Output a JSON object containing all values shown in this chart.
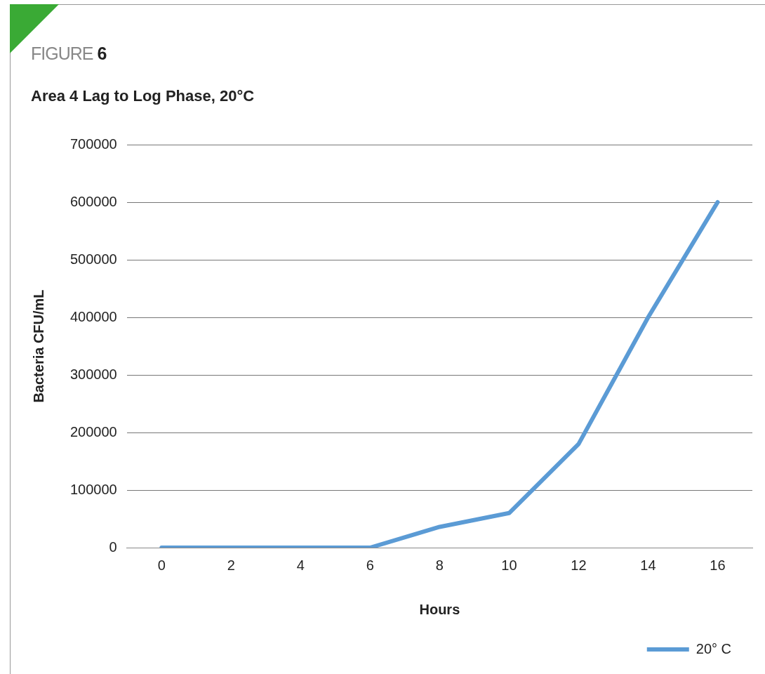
{
  "chart_data": {
    "type": "line",
    "title": "Area 4 Lag to Log Phase, 20°C",
    "xlabel": "Hours",
    "ylabel": "Bacteria CFU/mL",
    "annotations": [
      "FIGURE 6"
    ],
    "categories": [
      "0",
      "2",
      "4",
      "6",
      "8",
      "10",
      "12",
      "14",
      "16"
    ],
    "series": [
      {
        "name": "20° C",
        "color": "#5b9bd5",
        "values": [
          0,
          0,
          0,
          0,
          36000,
          60000,
          180000,
          400000,
          600000
        ]
      }
    ],
    "ylim": [
      0,
      700000
    ],
    "yticks": [
      0,
      100000,
      200000,
      300000,
      400000,
      500000,
      600000,
      700000
    ],
    "grid": "y",
    "legend": "bottom right",
    "marker": "none",
    "line_style": "solid"
  }
}
